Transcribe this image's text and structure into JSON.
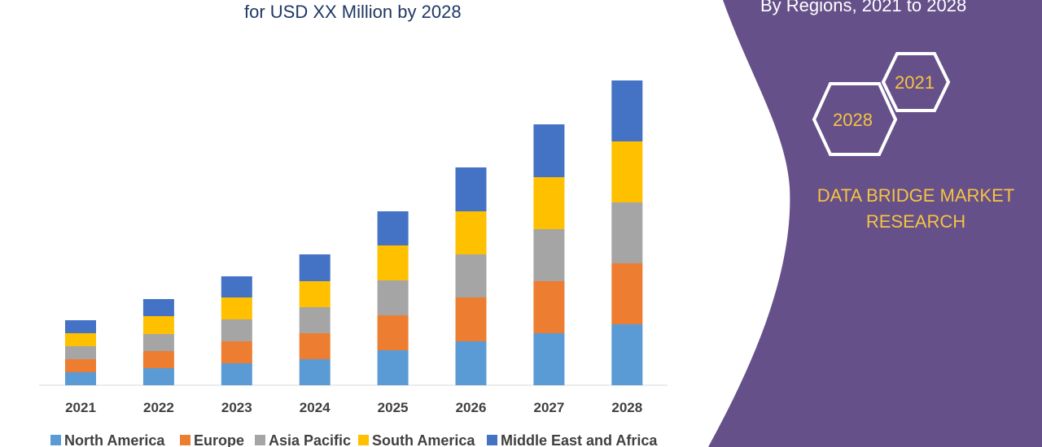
{
  "chart_data": {
    "type": "bar",
    "stacked": true,
    "title": "for USD XX Million by 2028",
    "xlabel": "",
    "ylabel": "",
    "categories": [
      "2021",
      "2022",
      "2023",
      "2024",
      "2025",
      "2026",
      "2027",
      "2028"
    ],
    "series": [
      {
        "name": "North America",
        "color": "#5b9bd5",
        "values": [
          16,
          21,
          27,
          32,
          43,
          54,
          64,
          75
        ]
      },
      {
        "name": "Europe",
        "color": "#ed7d31",
        "values": [
          16,
          21,
          27,
          32,
          43,
          54,
          64,
          75
        ]
      },
      {
        "name": "Asia Pacific",
        "color": "#a5a5a5",
        "values": [
          16,
          21,
          27,
          32,
          43,
          53,
          64,
          75
        ]
      },
      {
        "name": "South America",
        "color": "#ffc000",
        "values": [
          16,
          22,
          27,
          32,
          43,
          53,
          64,
          75
        ]
      },
      {
        "name": "Middle East and Africa",
        "color": "#4472c4",
        "values": [
          16,
          21,
          26,
          33,
          42,
          54,
          65,
          75
        ]
      }
    ],
    "ylim": [
      0,
      375
    ],
    "legend": "bottom",
    "grid": false
  },
  "panel": {
    "subtitle": "By Regions, 2021 to 2028",
    "hex_start": "2021",
    "hex_end": "2028",
    "brand_line1": "DATA BRIDGE MARKET",
    "brand_line2": "RESEARCH",
    "color": "#66508a",
    "accent": "#f5c342"
  }
}
